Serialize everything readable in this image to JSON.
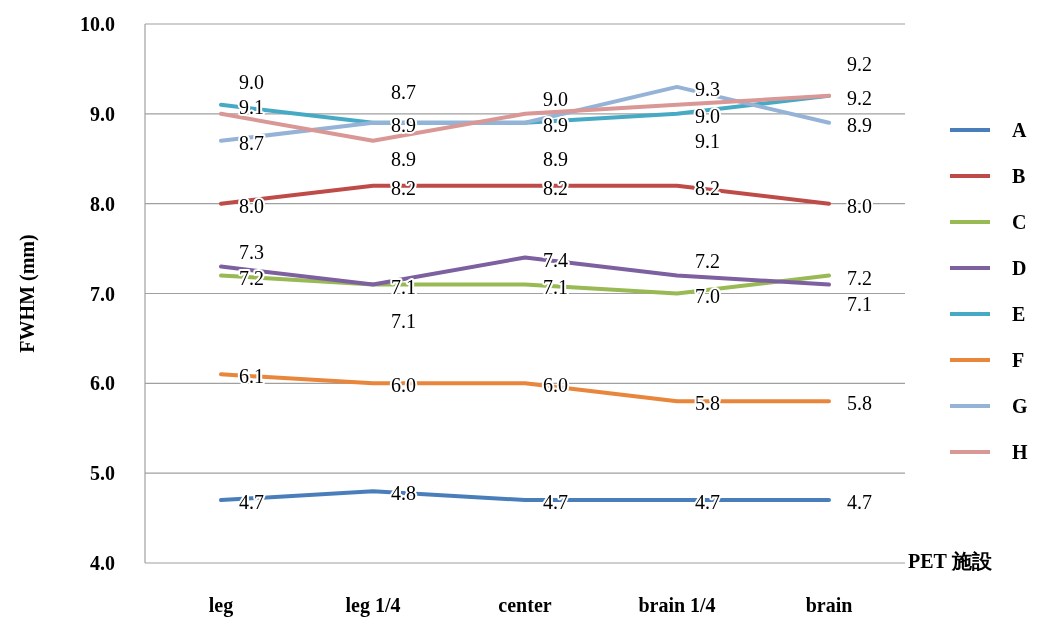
{
  "chart_data": {
    "type": "line",
    "ylabel": "FWHM (mm)",
    "xlabel": "PET 施設",
    "categories": [
      "leg",
      "leg  1/4",
      "center",
      "brain 1/4",
      "brain"
    ],
    "series": [
      {
        "name": "A",
        "color": "#4a7ebb",
        "values": [
          4.7,
          4.8,
          4.7,
          4.7,
          4.7
        ],
        "value_labels": [
          "4.7",
          "4.8",
          "4.7",
          "4.7",
          "4.7"
        ]
      },
      {
        "name": "B",
        "color": "#be4b48",
        "values": [
          8.0,
          8.2,
          8.2,
          8.2,
          8.0
        ],
        "value_labels": [
          "8.0",
          "8.2",
          "8.2",
          "8.2",
          "8.0"
        ]
      },
      {
        "name": "C",
        "color": "#98b954",
        "values": [
          7.2,
          7.1,
          7.1,
          7.0,
          7.2
        ],
        "value_labels": [
          "7.2",
          "7.1",
          "7.1",
          "7.0",
          "7.2"
        ]
      },
      {
        "name": "D",
        "color": "#7d60a0",
        "values": [
          7.3,
          7.1,
          7.4,
          7.2,
          7.1
        ],
        "value_labels": [
          "7.3",
          "7.1",
          "7.4",
          "7.2",
          "7.1"
        ]
      },
      {
        "name": "E",
        "color": "#46aac5",
        "values": [
          9.1,
          8.9,
          8.9,
          9.0,
          9.2
        ],
        "value_labels": [
          "9.1",
          "8.9",
          "8.9",
          "9.0",
          "9.2"
        ]
      },
      {
        "name": "F",
        "color": "#e8863c",
        "values": [
          6.1,
          6.0,
          6.0,
          5.8,
          5.8
        ],
        "value_labels": [
          "6.1",
          "6.0",
          "6.0",
          "5.8",
          "5.8"
        ]
      },
      {
        "name": "G",
        "color": "#95b3d7",
        "values": [
          8.7,
          8.9,
          8.9,
          9.3,
          8.9
        ],
        "value_labels": [
          "8.7",
          "8.9",
          "8.9",
          "9.3",
          "8.9"
        ]
      },
      {
        "name": "H",
        "color": "#d99795",
        "values": [
          9.0,
          8.7,
          9.0,
          9.1,
          9.2
        ],
        "value_labels": [
          "9.0",
          "8.7",
          "9.0",
          "9.1",
          "9.2"
        ]
      }
    ],
    "ylim": [
      4,
      10
    ],
    "yticks": [
      {
        "value": 4,
        "label": "4.0"
      },
      {
        "value": 5,
        "label": "5.0"
      },
      {
        "value": 6,
        "label": "6.0"
      },
      {
        "value": 7,
        "label": "7.0"
      },
      {
        "value": 8,
        "label": "8.0"
      },
      {
        "value": 9,
        "label": "9.0"
      },
      {
        "value": 10,
        "label": "10.0"
      }
    ],
    "grid": "y",
    "legend": "right",
    "marker": "none",
    "line_style": "solid"
  }
}
